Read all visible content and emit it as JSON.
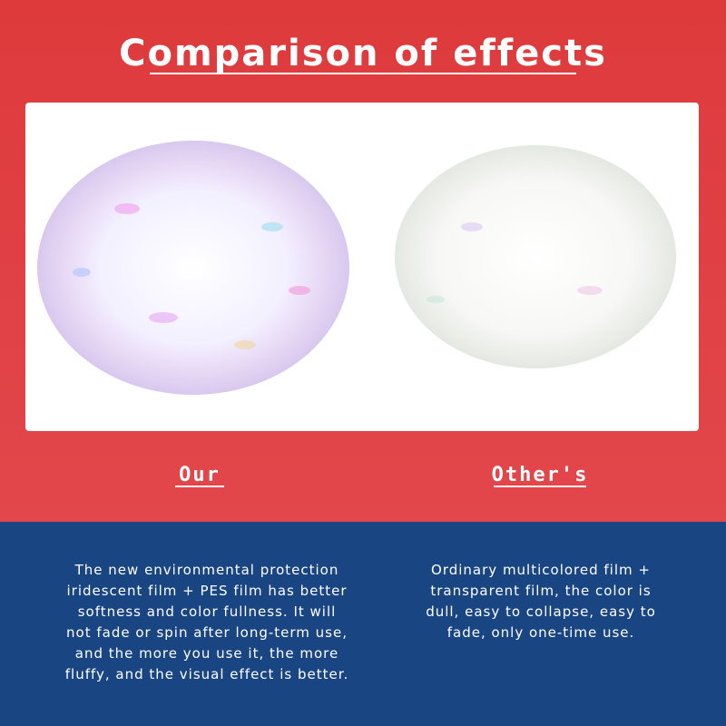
{
  "header": {
    "title": "Comparison of effects"
  },
  "columns": [
    {
      "label": "Our",
      "description": [
        "The new environmental protection",
        "iridescent film + PES film has better",
        "softness and color fullness. It will",
        "not fade or spin after long-term use,",
        "and the more you use it, the more",
        "fluffy, and the visual effect is better."
      ]
    },
    {
      "label": "Other's",
      "description": [
        "Ordinary multicolored film +",
        "transparent film, the color is",
        "dull, easy to collapse, easy to",
        "fade, only one-time use."
      ]
    }
  ]
}
